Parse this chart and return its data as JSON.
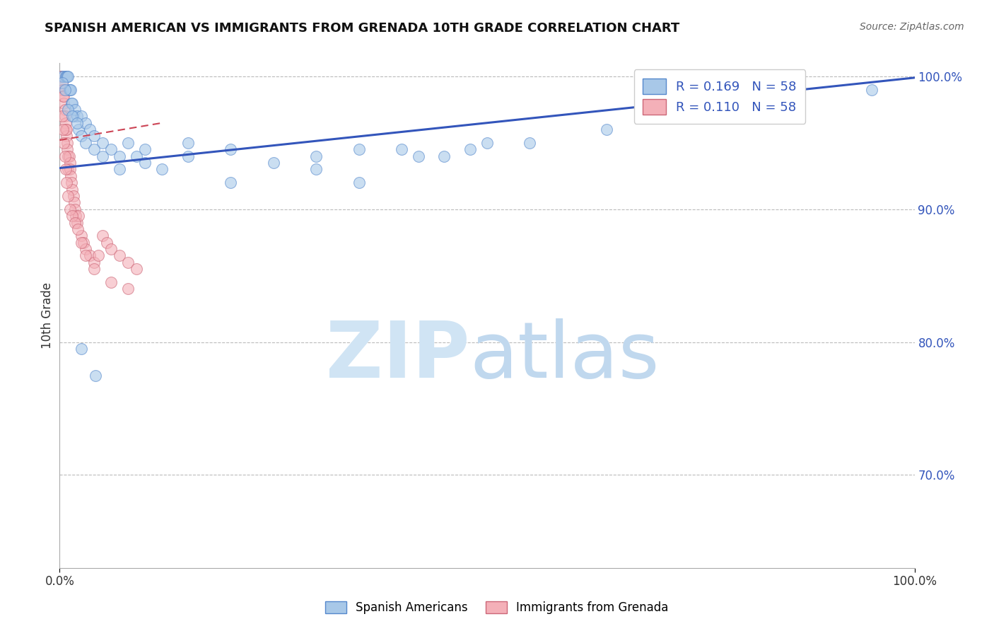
{
  "title": "SPANISH AMERICAN VS IMMIGRANTS FROM GRENADA 10TH GRADE CORRELATION CHART",
  "source": "Source: ZipAtlas.com",
  "ylabel": "10th Grade",
  "blue_R": 0.169,
  "blue_N": 58,
  "pink_R": 0.11,
  "pink_N": 58,
  "blue_color": "#a8c8e8",
  "blue_edge": "#5588cc",
  "pink_color": "#f4b0b8",
  "pink_edge": "#cc6677",
  "trend_blue_color": "#3355bb",
  "trend_pink_color": "#cc4455",
  "legend_label_blue": "Spanish Americans",
  "legend_label_pink": "Immigrants from Grenada",
  "watermark_zip_color": "#d0e4f4",
  "watermark_atlas_color": "#c0d8ee",
  "xlim": [
    0.0,
    1.0
  ],
  "ylim": [
    0.63,
    1.01
  ],
  "ytick_positions": [
    0.7,
    0.8,
    0.9,
    1.0
  ],
  "ytick_labels": [
    "70.0%",
    "80.0%",
    "90.0%",
    "100.0%"
  ],
  "blue_x": [
    0.003,
    0.005,
    0.007,
    0.008,
    0.009,
    0.01,
    0.011,
    0.012,
    0.013,
    0.014,
    0.015,
    0.016,
    0.018,
    0.02,
    0.022,
    0.025,
    0.03,
    0.035,
    0.04,
    0.05,
    0.06,
    0.07,
    0.08,
    0.09,
    0.1,
    0.12,
    0.15,
    0.2,
    0.25,
    0.3,
    0.35,
    0.4,
    0.45,
    0.5,
    0.003,
    0.006,
    0.01,
    0.015,
    0.02,
    0.025,
    0.03,
    0.04,
    0.05,
    0.07,
    0.1,
    0.15,
    0.2,
    0.3,
    0.35,
    0.42,
    0.48,
    0.55,
    0.64,
    0.72,
    0.85,
    0.95,
    0.025,
    0.042
  ],
  "blue_y": [
    1.0,
    1.0,
    1.0,
    1.0,
    1.0,
    1.0,
    0.99,
    0.99,
    0.99,
    0.98,
    0.98,
    0.97,
    0.975,
    0.97,
    0.96,
    0.97,
    0.965,
    0.96,
    0.955,
    0.95,
    0.945,
    0.94,
    0.95,
    0.94,
    0.945,
    0.93,
    0.95,
    0.945,
    0.935,
    0.94,
    0.92,
    0.945,
    0.94,
    0.95,
    0.995,
    0.99,
    0.975,
    0.97,
    0.965,
    0.955,
    0.95,
    0.945,
    0.94,
    0.93,
    0.935,
    0.94,
    0.92,
    0.93,
    0.945,
    0.94,
    0.945,
    0.95,
    0.96,
    0.97,
    0.975,
    0.99,
    0.795,
    0.775
  ],
  "pink_x": [
    0.001,
    0.002,
    0.003,
    0.003,
    0.004,
    0.004,
    0.005,
    0.005,
    0.006,
    0.006,
    0.007,
    0.007,
    0.008,
    0.008,
    0.009,
    0.009,
    0.01,
    0.01,
    0.011,
    0.012,
    0.012,
    0.013,
    0.014,
    0.015,
    0.016,
    0.017,
    0.018,
    0.019,
    0.02,
    0.022,
    0.025,
    0.028,
    0.03,
    0.035,
    0.04,
    0.045,
    0.05,
    0.055,
    0.06,
    0.07,
    0.08,
    0.09,
    0.003,
    0.004,
    0.005,
    0.006,
    0.007,
    0.008,
    0.01,
    0.012,
    0.015,
    0.018,
    0.021,
    0.025,
    0.03,
    0.04,
    0.06,
    0.08
  ],
  "pink_y": [
    1.0,
    1.0,
    0.99,
    0.995,
    0.99,
    0.985,
    0.98,
    0.985,
    0.975,
    0.97,
    0.965,
    0.96,
    0.955,
    0.96,
    0.95,
    0.945,
    0.94,
    0.93,
    0.94,
    0.935,
    0.93,
    0.925,
    0.92,
    0.915,
    0.91,
    0.905,
    0.9,
    0.895,
    0.89,
    0.895,
    0.88,
    0.875,
    0.87,
    0.865,
    0.86,
    0.865,
    0.88,
    0.875,
    0.87,
    0.865,
    0.86,
    0.855,
    0.97,
    0.96,
    0.95,
    0.94,
    0.93,
    0.92,
    0.91,
    0.9,
    0.895,
    0.89,
    0.885,
    0.875,
    0.865,
    0.855,
    0.845,
    0.84
  ],
  "blue_trend_x0": 0.0,
  "blue_trend_y0": 0.931,
  "blue_trend_x1": 1.0,
  "blue_trend_y1": 0.999,
  "pink_trend_x0": 0.0,
  "pink_trend_y0": 0.952,
  "pink_trend_x1": 0.12,
  "pink_trend_y1": 0.965,
  "marker_size": 130
}
